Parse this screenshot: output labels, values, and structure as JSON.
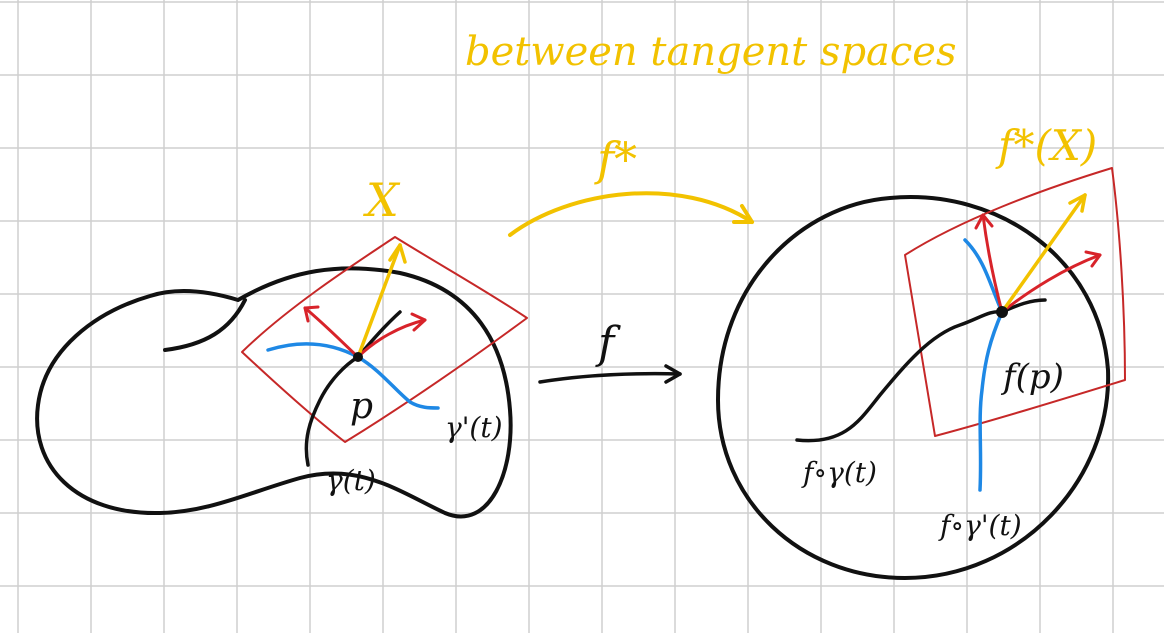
{
  "colors": {
    "grid": "#cfcfcf",
    "ink": "#111111",
    "yellow": "#f2c200",
    "red": "#d8232a",
    "blue": "#1e88e5",
    "plane": "#c62828"
  },
  "labels": {
    "title": "between tangent spaces",
    "f_star": "f*",
    "f": "f",
    "X": "X",
    "fstar_X": "f*(X)",
    "p": "p",
    "gamma_prime": "γ'(t)",
    "gamma": "γ(t)",
    "f_p": "f(p)",
    "f_gamma": "f∘γ(t)",
    "f_gamma_prime": "f∘γ'(t)"
  }
}
